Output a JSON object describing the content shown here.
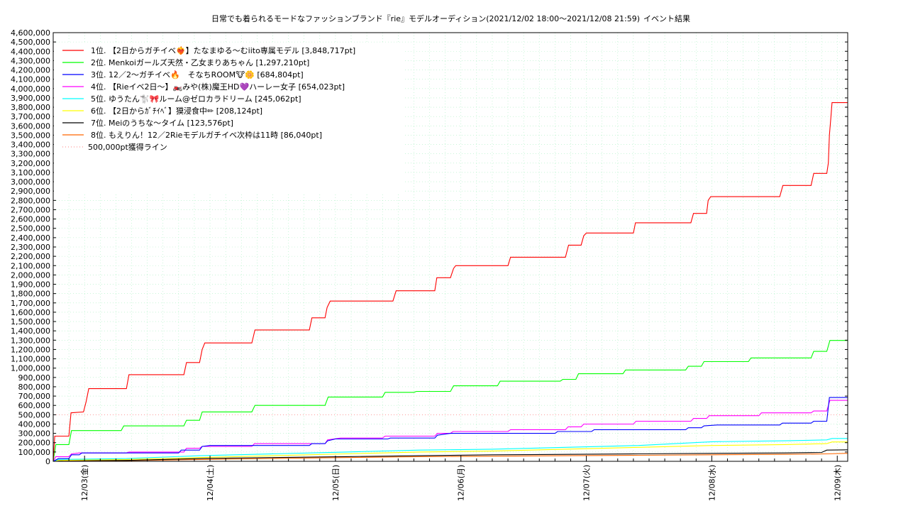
{
  "chart_data": {
    "type": "line",
    "title": "日常でも着られるモードなファッションブランド『rie』モデルオーディション(2021/12/02 18:00〜2021/12/08 21:59)",
    "subtitle": "イベント結果",
    "xlabel": "",
    "ylabel": "",
    "x_tick_labels": [
      "12/03(金)",
      "12/04(土)",
      "12/05(日)",
      "12/06(月)",
      "12/07(火)",
      "12/08(水)",
      "12/09(木)"
    ],
    "x_units": "hours since 2021/12/02 18:00",
    "xlim": [
      0,
      152
    ],
    "ylim": [
      0,
      4600000
    ],
    "y_tick_step": 100000,
    "grid": true,
    "legend_position": "top-left",
    "series": [
      {
        "name": "1位. 【2日からガチイベ❤‍🔥】たなまゆる〜むiito専属モデル [3,848,717pt]",
        "color": "#ff0000",
        "points": [
          [
            0,
            0
          ],
          [
            0.3,
            270000
          ],
          [
            3,
            270000
          ],
          [
            3.4,
            520000
          ],
          [
            5.8,
            530000
          ],
          [
            6.3,
            640000
          ],
          [
            6.8,
            780000
          ],
          [
            14,
            780000
          ],
          [
            14.5,
            930000
          ],
          [
            25,
            930000
          ],
          [
            25.5,
            1060000
          ],
          [
            28,
            1060000
          ],
          [
            28.5,
            1200000
          ],
          [
            29,
            1270000
          ],
          [
            38,
            1270000
          ],
          [
            38.6,
            1410000
          ],
          [
            49,
            1410000
          ],
          [
            49.5,
            1540000
          ],
          [
            52,
            1540000
          ],
          [
            52.4,
            1650000
          ],
          [
            53,
            1720000
          ],
          [
            65,
            1720000
          ],
          [
            65.6,
            1830000
          ],
          [
            73,
            1830000
          ],
          [
            73.4,
            1970000
          ],
          [
            76,
            1970000
          ],
          [
            76.6,
            2070000
          ],
          [
            77,
            2100000
          ],
          [
            87,
            2100000
          ],
          [
            87.5,
            2190000
          ],
          [
            98,
            2190000
          ],
          [
            98.6,
            2320000
          ],
          [
            101,
            2320000
          ],
          [
            101.5,
            2420000
          ],
          [
            102,
            2450000
          ],
          [
            111,
            2450000
          ],
          [
            111.4,
            2560000
          ],
          [
            122,
            2560000
          ],
          [
            122.5,
            2660000
          ],
          [
            125,
            2660000
          ],
          [
            125.3,
            2800000
          ],
          [
            125.8,
            2840000
          ],
          [
            139,
            2840000
          ],
          [
            139.6,
            2960000
          ],
          [
            145,
            2960000
          ],
          [
            145.5,
            3090000
          ],
          [
            148,
            3090000
          ],
          [
            148.3,
            3200000
          ],
          [
            148.5,
            3500000
          ],
          [
            148.8,
            3700000
          ],
          [
            149,
            3848717
          ],
          [
            152,
            3848717
          ]
        ]
      },
      {
        "name": "2位. Menkoiガールズ天然・乙女まりあちゃん [1,297,210pt]",
        "color": "#00ff00",
        "points": [
          [
            0,
            0
          ],
          [
            0.5,
            180000
          ],
          [
            3,
            180000
          ],
          [
            3.5,
            330000
          ],
          [
            13,
            330000
          ],
          [
            13.5,
            380000
          ],
          [
            25,
            380000
          ],
          [
            25.5,
            440000
          ],
          [
            28,
            440000
          ],
          [
            28.5,
            530000
          ],
          [
            38,
            530000
          ],
          [
            38.6,
            600000
          ],
          [
            52,
            600000
          ],
          [
            52.6,
            690000
          ],
          [
            63,
            690000
          ],
          [
            63.5,
            740000
          ],
          [
            69,
            740000
          ],
          [
            69.5,
            750000
          ],
          [
            76,
            750000
          ],
          [
            76.6,
            810000
          ],
          [
            85,
            810000
          ],
          [
            85.5,
            860000
          ],
          [
            97,
            860000
          ],
          [
            97.5,
            880000
          ],
          [
            100,
            880000
          ],
          [
            100.5,
            940000
          ],
          [
            109,
            940000
          ],
          [
            109.5,
            980000
          ],
          [
            121,
            980000
          ],
          [
            121.5,
            1020000
          ],
          [
            124,
            1020000
          ],
          [
            124.5,
            1070000
          ],
          [
            133,
            1070000
          ],
          [
            133.5,
            1110000
          ],
          [
            145,
            1110000
          ],
          [
            145.5,
            1180000
          ],
          [
            148,
            1180000
          ],
          [
            148.6,
            1297210
          ],
          [
            152,
            1297210
          ]
        ]
      },
      {
        "name": "3位. 12／2〜ガチイベ🔥　そなちROOM🐮🌼 [684,804pt]",
        "color": "#0000ff",
        "points": [
          [
            0,
            0
          ],
          [
            1,
            30000
          ],
          [
            3,
            30000
          ],
          [
            3.5,
            70000
          ],
          [
            5,
            70000
          ],
          [
            5.5,
            90000
          ],
          [
            24,
            90000
          ],
          [
            24.5,
            120000
          ],
          [
            28,
            120000
          ],
          [
            28.5,
            160000
          ],
          [
            30,
            170000
          ],
          [
            49,
            170000
          ],
          [
            49.5,
            190000
          ],
          [
            52,
            190000
          ],
          [
            52.5,
            220000
          ],
          [
            54,
            240000
          ],
          [
            64,
            240000
          ],
          [
            64.5,
            250000
          ],
          [
            73,
            250000
          ],
          [
            73.5,
            280000
          ],
          [
            76,
            300000
          ],
          [
            96,
            300000
          ],
          [
            96.5,
            320000
          ],
          [
            103,
            320000
          ],
          [
            103.5,
            340000
          ],
          [
            121,
            340000
          ],
          [
            121.5,
            360000
          ],
          [
            124,
            360000
          ],
          [
            124.5,
            380000
          ],
          [
            127,
            390000
          ],
          [
            139,
            390000
          ],
          [
            139.5,
            410000
          ],
          [
            145,
            410000
          ],
          [
            145.5,
            430000
          ],
          [
            148,
            430000
          ],
          [
            148.5,
            684804
          ],
          [
            152,
            684804
          ]
        ]
      },
      {
        "name": "4位. 【Rieイベ2日〜】🏍️みや(株)魔王HD💜ハーレー女子 [654,023pt]",
        "color": "#ff00ff",
        "points": [
          [
            0,
            0
          ],
          [
            0.5,
            50000
          ],
          [
            3,
            50000
          ],
          [
            3.5,
            80000
          ],
          [
            5,
            90000
          ],
          [
            14,
            90000
          ],
          [
            14.5,
            100000
          ],
          [
            25,
            100000
          ],
          [
            25.5,
            140000
          ],
          [
            28,
            140000
          ],
          [
            28.5,
            160000
          ],
          [
            38,
            160000
          ],
          [
            38.5,
            190000
          ],
          [
            52,
            190000
          ],
          [
            52.5,
            230000
          ],
          [
            55,
            250000
          ],
          [
            63,
            250000
          ],
          [
            63.5,
            270000
          ],
          [
            73,
            270000
          ],
          [
            73.5,
            300000
          ],
          [
            76,
            300000
          ],
          [
            76.5,
            320000
          ],
          [
            87,
            320000
          ],
          [
            87.5,
            340000
          ],
          [
            98,
            340000
          ],
          [
            98.5,
            370000
          ],
          [
            101,
            370000
          ],
          [
            101.5,
            400000
          ],
          [
            111,
            400000
          ],
          [
            111.5,
            430000
          ],
          [
            122,
            430000
          ],
          [
            122.5,
            460000
          ],
          [
            125,
            460000
          ],
          [
            125.5,
            490000
          ],
          [
            135,
            490000
          ],
          [
            135.5,
            520000
          ],
          [
            145,
            520000
          ],
          [
            145.5,
            540000
          ],
          [
            148,
            540000
          ],
          [
            148.6,
            654023
          ],
          [
            152,
            654023
          ]
        ]
      },
      {
        "name": "5位. ゆうたん🐩🎀ルーム@ゼロカラドリーム [245,062pt]",
        "color": "#00ffff",
        "points": [
          [
            0,
            0
          ],
          [
            1,
            20000
          ],
          [
            14,
            30000
          ],
          [
            28,
            60000
          ],
          [
            42,
            80000
          ],
          [
            56,
            100000
          ],
          [
            70,
            120000
          ],
          [
            84,
            130000
          ],
          [
            98,
            150000
          ],
          [
            112,
            170000
          ],
          [
            126,
            210000
          ],
          [
            140,
            220000
          ],
          [
            148,
            230000
          ],
          [
            149,
            245062
          ],
          [
            152,
            245062
          ]
        ]
      },
      {
        "name": "6位. 【2日からｶﾞﾁｲﾍﾞ】獏浸食中✏ [208,124pt]",
        "color": "#ffff00",
        "points": [
          [
            0,
            0
          ],
          [
            1,
            10000
          ],
          [
            14,
            20000
          ],
          [
            28,
            40000
          ],
          [
            42,
            60000
          ],
          [
            56,
            80000
          ],
          [
            70,
            100000
          ],
          [
            84,
            110000
          ],
          [
            98,
            130000
          ],
          [
            112,
            150000
          ],
          [
            126,
            170000
          ],
          [
            140,
            180000
          ],
          [
            148,
            190000
          ],
          [
            149,
            208124
          ],
          [
            152,
            208124
          ]
        ]
      },
      {
        "name": "7位. Meiのうちな〜タイム [123,576pt]",
        "color": "#000000",
        "points": [
          [
            0,
            0
          ],
          [
            2,
            10000
          ],
          [
            14,
            10000
          ],
          [
            28,
            30000
          ],
          [
            42,
            40000
          ],
          [
            56,
            50000
          ],
          [
            70,
            60000
          ],
          [
            84,
            70000
          ],
          [
            98,
            75000
          ],
          [
            112,
            80000
          ],
          [
            126,
            85000
          ],
          [
            140,
            90000
          ],
          [
            147,
            95000
          ],
          [
            148,
            120000
          ],
          [
            152,
            123576
          ]
        ]
      },
      {
        "name": "8位. もえりん！12／2Rieモデルガチイベ次枠は11時 [86,040pt]",
        "color": "#ff6600",
        "points": [
          [
            0,
            0
          ],
          [
            2,
            5000
          ],
          [
            14,
            8000
          ],
          [
            28,
            20000
          ],
          [
            42,
            30000
          ],
          [
            56,
            40000
          ],
          [
            70,
            50000
          ],
          [
            84,
            55000
          ],
          [
            98,
            60000
          ],
          [
            112,
            65000
          ],
          [
            126,
            70000
          ],
          [
            140,
            75000
          ],
          [
            148,
            80000
          ],
          [
            152,
            86040
          ]
        ]
      }
    ],
    "reference_line": {
      "name": "500,000pt獲得ライン",
      "value": 500000,
      "color": "#ff9999",
      "style": "dotted"
    }
  }
}
